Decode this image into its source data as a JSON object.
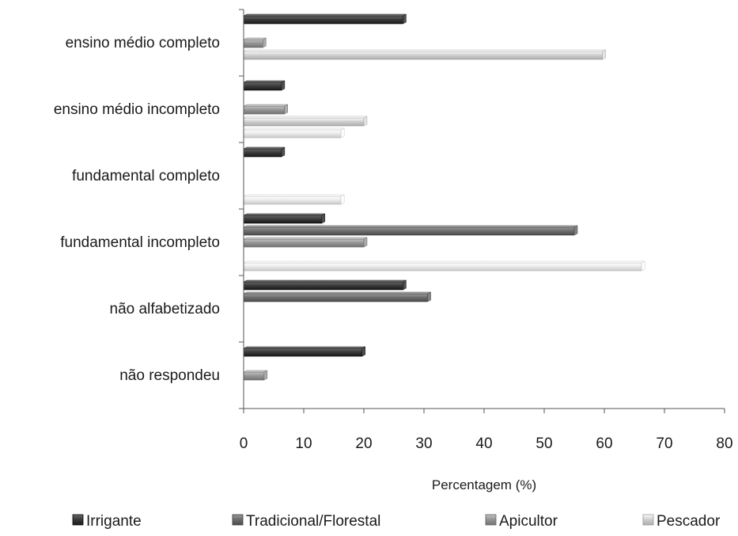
{
  "chart_data": {
    "type": "bar",
    "orientation": "horizontal",
    "categories": [
      "ensino médio completo",
      "ensino médio incompleto",
      "fundamental completo",
      "fundamental incompleto",
      "não alfabetizado",
      "não respondeu"
    ],
    "series": [
      {
        "name": "Irrigante",
        "color": "#3c3c3c",
        "values": [
          26.5,
          6.3,
          6.3,
          13.0,
          26.5,
          19.7
        ]
      },
      {
        "name": "Tradicional/Florestal",
        "color": "#6e6e6e",
        "values": [
          0,
          0,
          0,
          55.0,
          30.6,
          0
        ]
      },
      {
        "name": "Apicultor",
        "color": "#969696",
        "values": [
          3.2,
          6.8,
          0,
          20.0,
          0,
          3.4
        ]
      },
      {
        "name": "Pescador",
        "color": "#d0d0d0",
        "values": [
          59.7,
          20.0,
          0,
          0,
          0,
          0
        ]
      },
      {
        "name": "",
        "color": "#ebebeb",
        "values": [
          0,
          16.2,
          16.2,
          66.2,
          0,
          0
        ]
      }
    ],
    "xlabel": "Percentagem (%)",
    "ylabel": "",
    "xlim": [
      0,
      80
    ],
    "xticks": [
      "0",
      "10",
      "20",
      "30",
      "40",
      "50",
      "60",
      "70",
      "80"
    ],
    "legend_labels": [
      "Irrigante",
      "Tradicional/Florestal",
      "Apicultor",
      "Pescador"
    ],
    "grid": false,
    "legend_position": "bottom"
  }
}
